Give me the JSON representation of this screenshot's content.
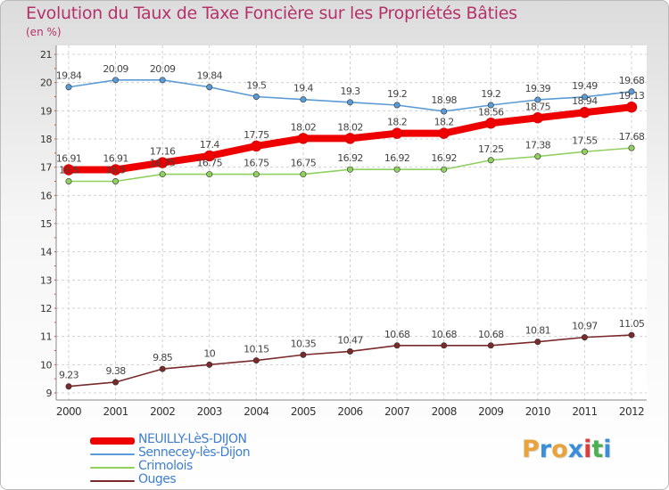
{
  "title": "Evolution du Taux de Taxe Foncière sur les Propriétés Bâties",
  "unit": "(en %)",
  "brand": {
    "text": "Proxiti",
    "colors": [
      "#e8a33c",
      "#3a8fd8",
      "#e8a33c",
      "#3a8fd8",
      "#e03c3c",
      "#4caf50",
      "#3a8fd8"
    ]
  },
  "chart_data": {
    "type": "line",
    "x": [
      "2000",
      "2001",
      "2002",
      "2003",
      "2004",
      "2005",
      "2006",
      "2007",
      "2008",
      "2009",
      "2010",
      "2011",
      "2012"
    ],
    "ylim": [
      9,
      21
    ],
    "yticks": [
      "9",
      "10",
      "11",
      "12",
      "13",
      "14",
      "15",
      "16",
      "17",
      "18",
      "19",
      "20",
      "21"
    ],
    "grid": true,
    "legend_position": "bottom-left",
    "series": [
      {
        "name": "Sennecey-lès-Dijon",
        "color": "#5b9bd5",
        "values": [
          19.84,
          20.09,
          20.09,
          19.84,
          19.5,
          19.4,
          19.3,
          19.2,
          18.98,
          19.2,
          19.39,
          19.49,
          19.68
        ],
        "labels": [
          "19.84",
          "20.09",
          "20.09",
          "19.84",
          "19.5",
          "19.4",
          "19.3",
          "19.2",
          "18.98",
          "19.2",
          "19.39",
          "19.49",
          "19.68"
        ]
      },
      {
        "name": "Crimolois",
        "color": "#8fd05e",
        "values": [
          16.5,
          16.5,
          16.75,
          16.75,
          16.75,
          16.75,
          16.92,
          16.92,
          16.92,
          17.25,
          17.38,
          17.55,
          17.68
        ],
        "labels": [
          "16.5",
          "16.5",
          "16.75",
          "16.75",
          "16.75",
          "16.75",
          "16.92",
          "16.92",
          "16.92",
          "17.25",
          "17.38",
          "17.55",
          "17.68"
        ]
      },
      {
        "name": "Ouges",
        "color": "#7a2a2a",
        "values": [
          9.23,
          9.38,
          9.85,
          10,
          10.15,
          10.35,
          10.47,
          10.68,
          10.68,
          10.68,
          10.81,
          10.97,
          11.05
        ],
        "labels": [
          "9.23",
          "9.38",
          "9.85",
          "10",
          "10.15",
          "10.35",
          "10.47",
          "10.68",
          "10.68",
          "10.68",
          "10.81",
          "10.97",
          "11.05"
        ]
      },
      {
        "name": "NEUILLY-LèS-DIJON",
        "color": "#ee0000",
        "bold": true,
        "values": [
          16.91,
          16.91,
          17.16,
          17.4,
          17.75,
          18.02,
          18.02,
          18.2,
          18.2,
          18.56,
          18.75,
          18.94,
          19.13
        ],
        "labels": [
          "16.91",
          "16.91",
          "17.16",
          "17.4",
          "17.75",
          "18.02",
          "18.02",
          "18.2",
          "18.2",
          "18.56",
          "18.75",
          "18.94",
          "19.13"
        ]
      }
    ],
    "legend_order": [
      "NEUILLY-LèS-DIJON",
      "Sennecey-lès-Dijon",
      "Crimolois",
      "Ouges"
    ]
  }
}
